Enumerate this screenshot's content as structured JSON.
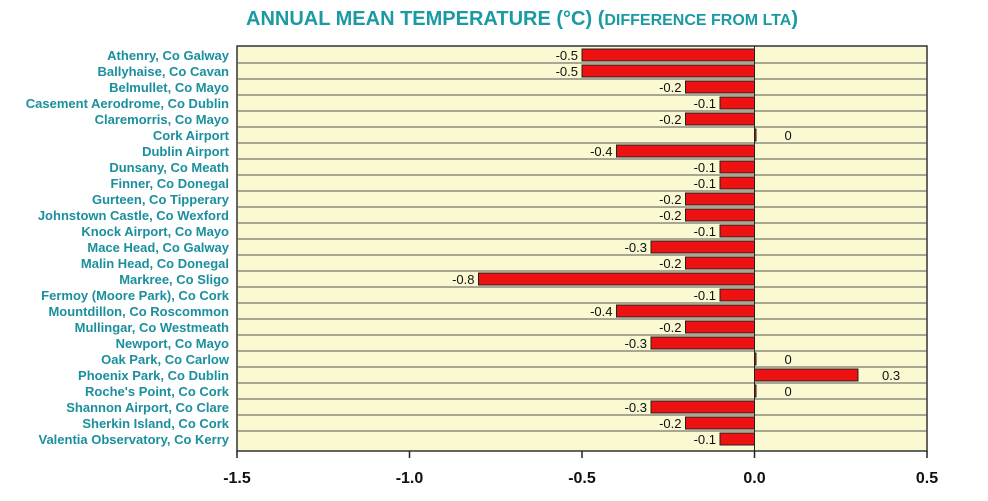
{
  "chart_data": {
    "type": "bar",
    "orientation": "horizontal",
    "title": "ANNUAL MEAN TEMPERATURE (°C) (DIFFERENCE FROM LTA)",
    "title_main": "ANNUAL MEAN TEMPERATURE (°C) (",
    "title_sub": "DIFFERENCE FROM LTA",
    "title_end": ")",
    "xlabel": "",
    "ylabel": "",
    "xlim": [
      -1.5,
      0.5
    ],
    "ticks": [
      -1.5,
      -1.0,
      -0.5,
      0.0,
      0.5
    ],
    "tick_labels": [
      "-1.5",
      "-1.0",
      "-0.5",
      "0.0",
      "0.5"
    ],
    "grid": true,
    "categories": [
      "Athenry, Co Galway",
      "Ballyhaise, Co Cavan",
      "Belmullet, Co Mayo",
      "Casement Aerodrome, Co Dublin",
      "Claremorris, Co Mayo",
      "Cork Airport",
      "Dublin Airport",
      "Dunsany, Co Meath",
      "Finner, Co Donegal",
      "Gurteen, Co Tipperary",
      "Johnstown Castle, Co Wexford",
      "Knock Airport, Co Mayo",
      "Mace Head, Co Galway",
      "Malin Head, Co Donegal",
      "Markree, Co Sligo",
      "Fermoy (Moore Park), Co Cork",
      "Mountdillon, Co Roscommon",
      "Mullingar, Co Westmeath",
      "Newport, Co Mayo",
      "Oak Park, Co Carlow",
      "Phoenix Park, Co Dublin",
      "Roche's Point, Co Cork",
      "Shannon Airport, Co Clare",
      "Sherkin Island, Co Cork",
      "Valentia Observatory, Co Kerry"
    ],
    "values": [
      -0.5,
      -0.5,
      -0.2,
      -0.1,
      -0.2,
      0,
      -0.4,
      -0.1,
      -0.1,
      -0.2,
      -0.2,
      -0.1,
      -0.3,
      -0.2,
      -0.8,
      -0.1,
      -0.4,
      -0.2,
      -0.3,
      0,
      0.3,
      0,
      -0.3,
      -0.2,
      -0.1
    ],
    "data_labels": [
      "-0.5",
      "-0.5",
      "-0.2",
      "-0.1",
      "-0.2",
      "0",
      "-0.4",
      "-0.1",
      "-0.1",
      "-0.2",
      "-0.2",
      "-0.1",
      "-0.3",
      "-0.2",
      "-0.8",
      "-0.1",
      "-0.4",
      "-0.2",
      "-0.3",
      "0",
      "0.3",
      "0",
      "-0.3",
      "-0.2",
      "-0.1"
    ],
    "colors": {
      "bar": "#ee1111",
      "bar_border": "#222222",
      "plot_background": "#fbf9d2",
      "title": "#1a9aa3",
      "category_label": "#1a8f9e"
    }
  }
}
